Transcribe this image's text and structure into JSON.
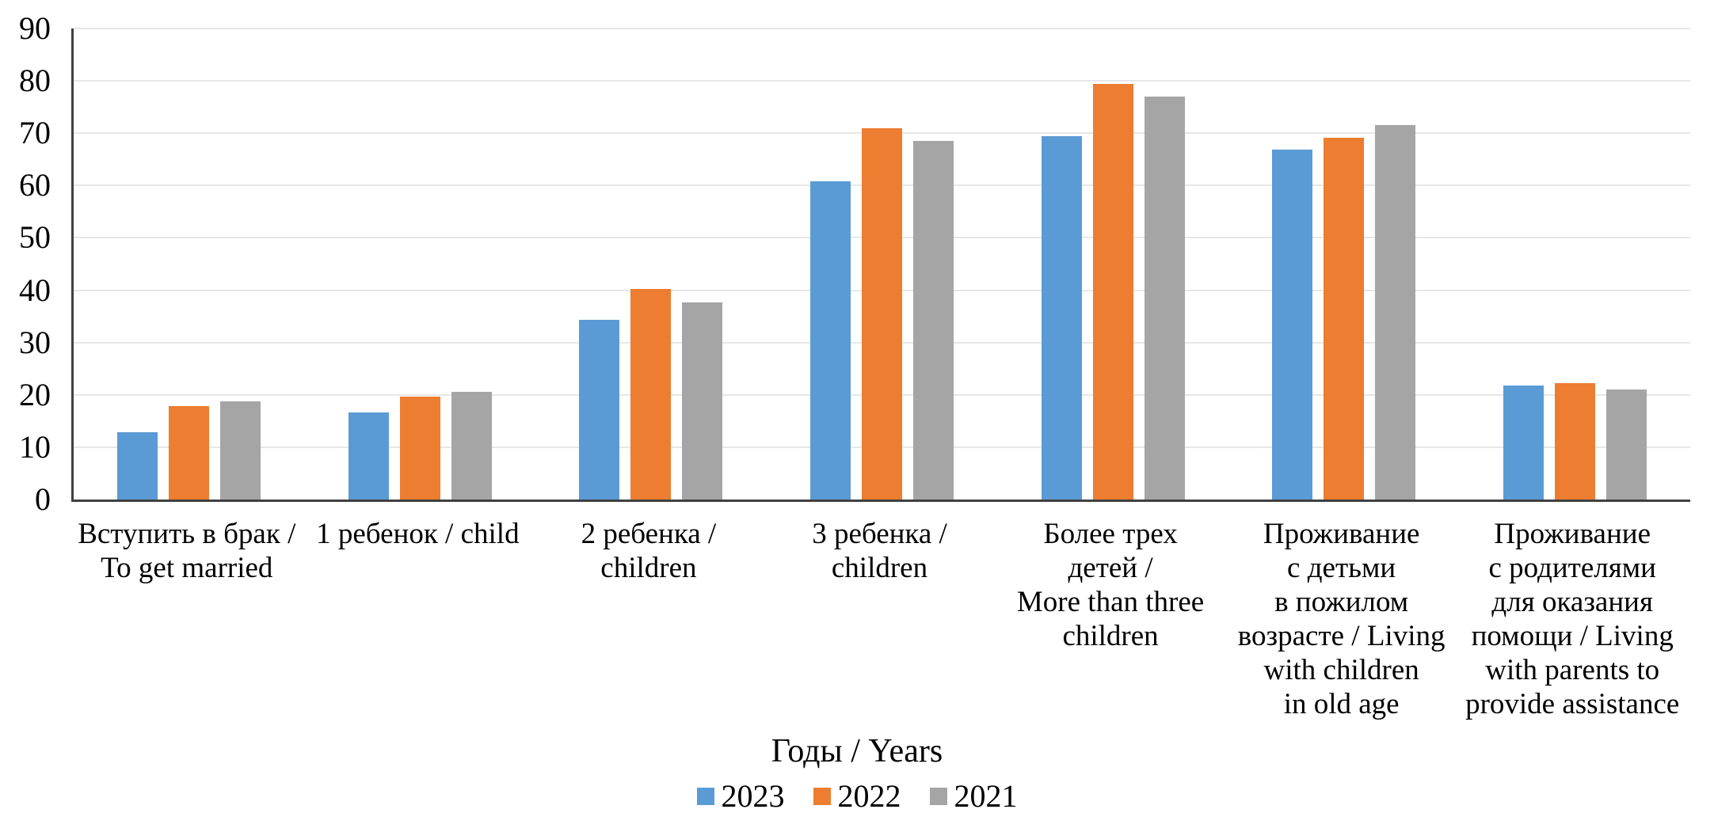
{
  "background_color": "#FFFFFF",
  "chart_data": {
    "type": "bar",
    "legend_title": "Годы / Years",
    "legend_position": "bottom",
    "grid": true,
    "ylim": [
      0,
      90
    ],
    "ytick_step": 10,
    "axis_color": "#404040",
    "gridline_color": "#E7E7E7",
    "text_color": "#000000",
    "categories": [
      "Вступить в брак /\nTo get married",
      "1 ребенок / child",
      "2 ребенка /\nchildren",
      "3 ребенка /\nchildren",
      "Более трех\nдетей /\nMore than three\nchildren",
      "Проживание\nс детьми\nв пожилом\nвозрасте / Living\nwith children\nin old age",
      "Проживание\nс родителями\nдля оказания\nпомощи / Living\nwith parents to\nprovide assistance"
    ],
    "series": [
      {
        "name": "2023",
        "color": "#5B9BD5",
        "values": [
          12.8,
          16.7,
          34.3,
          60.8,
          69.5,
          66.8,
          21.8
        ]
      },
      {
        "name": "2022",
        "color": "#ED7D31",
        "values": [
          17.8,
          19.6,
          40.2,
          71.0,
          79.4,
          69.2,
          22.2
        ]
      },
      {
        "name": "2021",
        "color": "#A5A5A5",
        "values": [
          18.7,
          20.5,
          37.6,
          68.5,
          77.0,
          71.5,
          21.1
        ]
      }
    ]
  }
}
